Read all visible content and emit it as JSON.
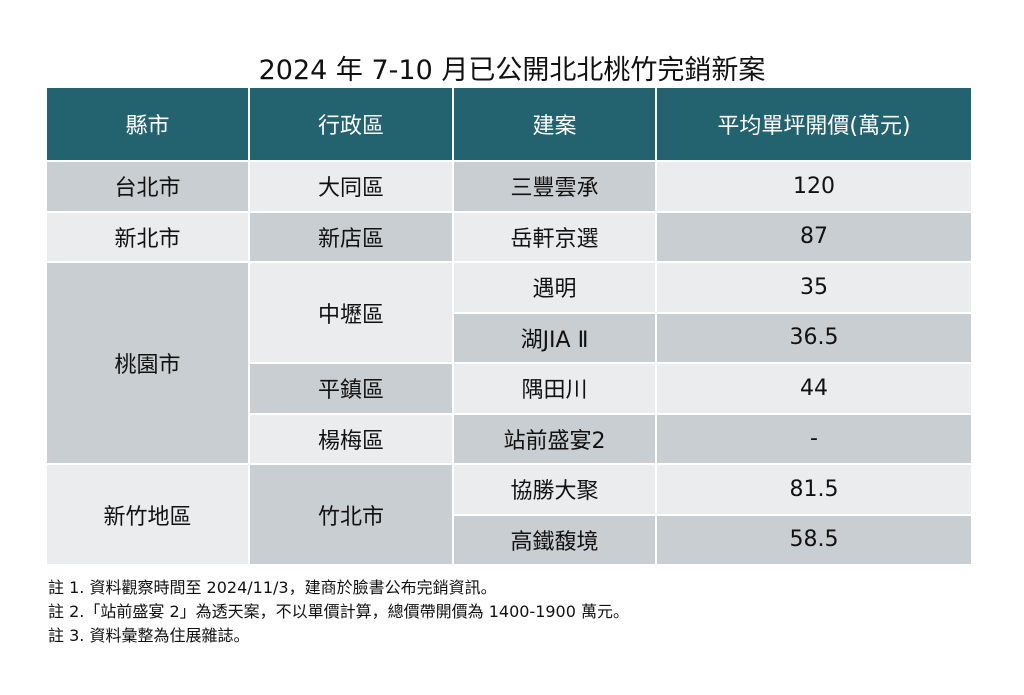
{
  "title": "2024 年 7-10 月已公開北北桃竹完銷新案",
  "table": {
    "header": [
      "縣市",
      "行政區",
      "建案",
      "平均單坪開價(萬元)"
    ],
    "rows": [
      [
        "台北市",
        "大同區",
        "三豐雲承",
        "120"
      ],
      [
        "新北市",
        "新店區",
        "岳軒京選",
        "87"
      ],
      [
        "桃園市",
        "中壢區",
        "遇明",
        "35"
      ],
      [
        "湖JIA Ⅱ",
        "36.5"
      ],
      [
        "平鎮區",
        "隅田川",
        "44"
      ],
      [
        "楊梅區",
        "站前盛宴2",
        "-"
      ],
      [
        "新竹地區",
        "竹北市",
        "協勝大聚",
        "81.5"
      ],
      [
        "高鐵馥境",
        "58.5"
      ]
    ]
  },
  "notes": [
    "註 1. 資料觀察時間至 2024/11/3，建商於臉書公布完銷資訊。",
    "註 2.「站前盛宴 2」為透天案，不以單價計算，總價帶開價為 1400-1900 萬元。",
    "註 3. 資料彙整為住展雜誌。"
  ]
}
